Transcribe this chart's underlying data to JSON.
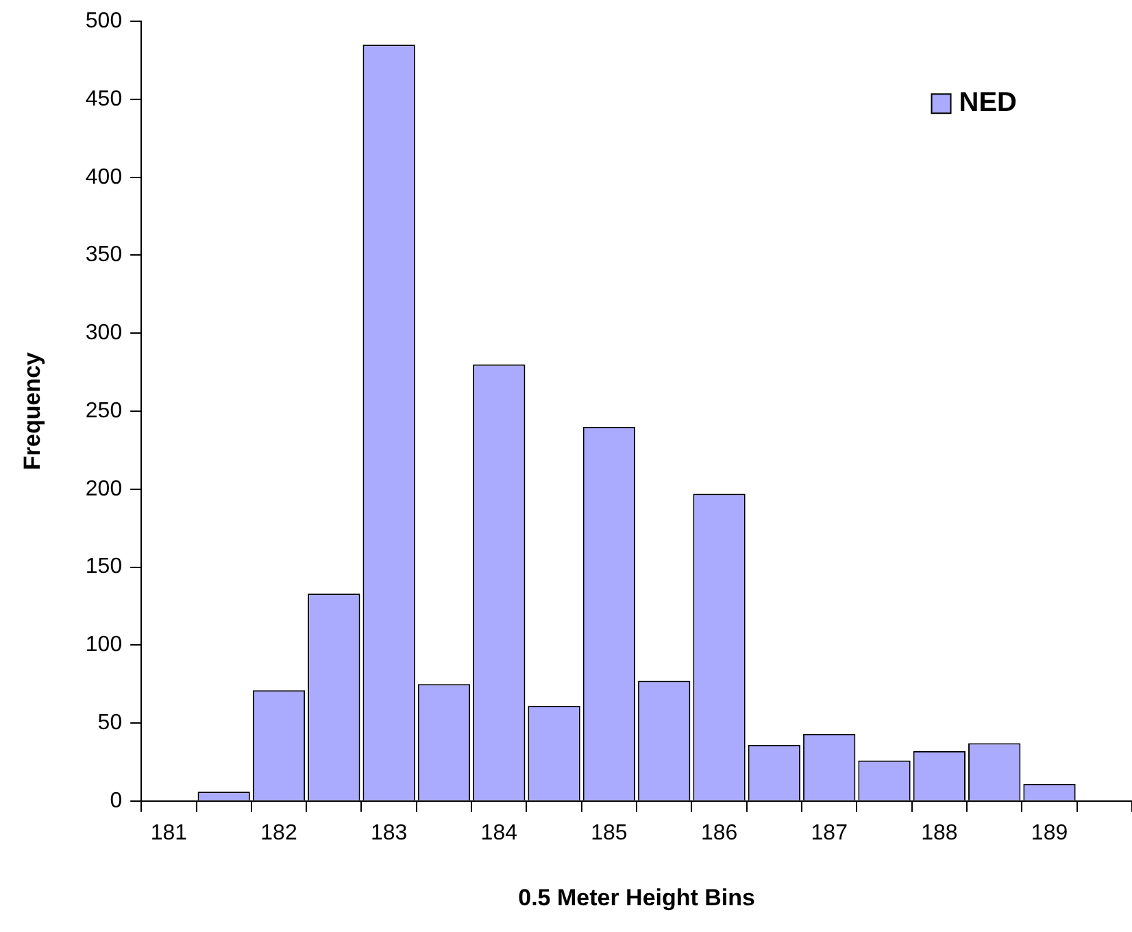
{
  "chart_data": {
    "type": "bar",
    "xlabel": "0.5 Meter Height Bins",
    "ylabel": "Frequency",
    "categories": [
      "181",
      null,
      "182",
      null,
      "183",
      null,
      "184",
      null,
      "185",
      null,
      "186",
      null,
      "187",
      null,
      "188",
      null,
      "189",
      null
    ],
    "series": [
      {
        "name": "NED",
        "color": "#aaaaff",
        "values": [
          null,
          6,
          71,
          133,
          485,
          75,
          280,
          61,
          240,
          77,
          197,
          36,
          43,
          26,
          32,
          37,
          11,
          null
        ]
      }
    ],
    "ylim": [
      0,
      500
    ],
    "yticks": [
      0,
      50,
      100,
      150,
      200,
      250,
      300,
      350,
      400,
      450,
      500
    ],
    "grid": false,
    "legend": "top right"
  }
}
